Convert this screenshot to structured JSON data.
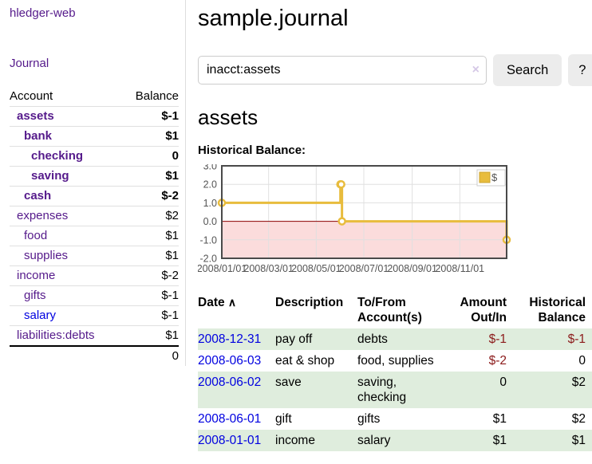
{
  "app": {
    "brand": "hledger-web"
  },
  "colors": {
    "link_purple": "#551a8b",
    "link_blue": "#0000e0",
    "negative_strong": "#8b1a1a",
    "negative_dim": "#c06a6a",
    "row_green": "#dfeddd",
    "series_yellow": "#e8bc3d",
    "zero_line_red": "#8b0000",
    "negative_region_pink": "#fbdcdc"
  },
  "sidebar": {
    "journal_link": "Journal",
    "table": {
      "account_header": "Account",
      "balance_header": "Balance",
      "rows": [
        {
          "name": "assets",
          "balance": "$-1",
          "level": 1,
          "bold": true
        },
        {
          "name": "bank",
          "balance": "$1",
          "level": 2,
          "bold": true
        },
        {
          "name": "checking",
          "balance": "0",
          "level": 3,
          "bold": true
        },
        {
          "name": "saving",
          "balance": "$1",
          "level": 3,
          "bold": true
        },
        {
          "name": "cash",
          "balance": "$-2",
          "level": 2,
          "bold": true
        },
        {
          "name": "expenses",
          "balance": "$2",
          "level": 1,
          "bold": false
        },
        {
          "name": "food",
          "balance": "$1",
          "level": 2,
          "bold": false
        },
        {
          "name": "supplies",
          "balance": "$1",
          "level": 2,
          "bold": false
        },
        {
          "name": "income",
          "balance": "$-2",
          "level": 1,
          "bold": false
        },
        {
          "name": "gifts",
          "balance": "$-1",
          "level": 2,
          "bold": false
        },
        {
          "name": "salary",
          "balance": "$-1",
          "level": 2,
          "bold": false,
          "link_class": "blue"
        },
        {
          "name": "liabilities:debts",
          "balance": "$1",
          "level": 1,
          "bold": false
        }
      ],
      "total": "0"
    }
  },
  "main": {
    "title": "sample.journal",
    "search": {
      "value": "inacct:assets",
      "clear_icon": "×",
      "search_label": "Search",
      "help_label": "?"
    },
    "account_heading": "assets",
    "chart_label": "Historical Balance:"
  },
  "chart_data": {
    "type": "line",
    "step": true,
    "title": "Historical Balance",
    "series": [
      {
        "name": "$",
        "color": "#e8bc3d",
        "points": [
          [
            "2008-01-01",
            1
          ],
          [
            "2008-06-01",
            2
          ],
          [
            "2008-06-02",
            2
          ],
          [
            "2008-06-03",
            0
          ],
          [
            "2008-12-31",
            -1
          ]
        ]
      }
    ],
    "xlim": [
      "2008-01-01",
      "2008-12-31"
    ],
    "ylim": [
      -2,
      3
    ],
    "x_ticks": [
      "2008/01/01",
      "2008/03/01",
      "2008/05/01",
      "2008/07/01",
      "2008/09/01",
      "2008/11/01"
    ],
    "y_ticks": [
      "3.0",
      "2.0",
      "1.0",
      "0.0",
      "-1.0",
      "-2.0"
    ],
    "grid": true,
    "legend": {
      "label": "$",
      "position": "top-right"
    },
    "zero_line_color": "#8b0000",
    "negative_region_fill": "#fbdcdc"
  },
  "transactions": {
    "sort_asc_icon": "∧",
    "headers": [
      "Date",
      "Description",
      "To/From Account(s)",
      "Amount Out/In",
      "Historical Balance"
    ],
    "rows": [
      {
        "date": "2008-12-31",
        "description": "pay off",
        "accounts": "debts",
        "amount": "$-1",
        "balance": "$-1"
      },
      {
        "date": "2008-06-03",
        "description": "eat & shop",
        "accounts": "food, supplies",
        "amount": "$-2",
        "balance": "0"
      },
      {
        "date": "2008-06-02",
        "description": "save",
        "accounts": "saving, checking",
        "amount": "0",
        "balance": "$2"
      },
      {
        "date": "2008-06-01",
        "description": "gift",
        "accounts": "gifts",
        "amount": "$1",
        "balance": "$2"
      },
      {
        "date": "2008-01-01",
        "description": "income",
        "accounts": "salary",
        "amount": "$1",
        "balance": "$1"
      }
    ]
  }
}
